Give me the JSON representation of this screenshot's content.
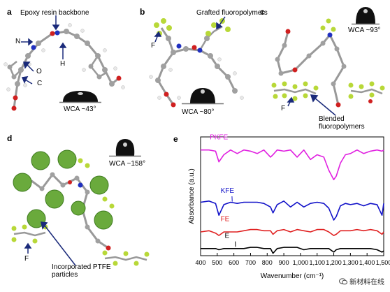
{
  "panels": {
    "a": {
      "label": "a",
      "title": "Epoxy resin backbone",
      "atoms": {
        "n": "N",
        "o": "O",
        "c": "C",
        "h": "H"
      },
      "wca": "WCA ~43°"
    },
    "b": {
      "label": "b",
      "title": "Grafted fluoropolymers",
      "atoms": {
        "f": "F"
      },
      "wca": "WCA ~80°"
    },
    "c": {
      "label": "c",
      "wca": "WCA ~93°",
      "atoms": {
        "f": "F"
      },
      "note_line1": "Blended",
      "note_line2": "fluoropolymers"
    },
    "d": {
      "label": "d",
      "wca": "WCA ~158°",
      "atoms": {
        "f": "F"
      },
      "note_line1": "Incorporated PTFE",
      "note_line2": "particles"
    },
    "e": {
      "label": "e"
    }
  },
  "watermark": "新材料在线",
  "colors": {
    "pkfe": "#e020e0",
    "kfe": "#1010c8",
    "fe": "#e02020",
    "e": "#000000",
    "ptfe": "#6aaa3c",
    "fluorine": "#b8d838",
    "oxygen": "#d02020",
    "nitrogen": "#2030c0",
    "carbon": "#a0a0a0",
    "hydrogen": "#e8e8e8"
  },
  "chart_data": {
    "type": "line",
    "xlabel": "Wavenumber (cm⁻¹)",
    "ylabel": "Absorbance (a.u.)",
    "xlim": [
      400,
      1500
    ],
    "ylim": [
      0,
      10
    ],
    "xticks": [
      "400",
      "500",
      "600",
      "700",
      "800",
      "900",
      "1,000",
      "1,100",
      "1,200",
      "1,300",
      "1,400",
      "1,500"
    ],
    "tick_values": [
      400,
      500,
      600,
      700,
      800,
      900,
      1000,
      1100,
      1200,
      1300,
      1400,
      1500
    ],
    "x": [
      400,
      450,
      490,
      510,
      540,
      580,
      620,
      660,
      700,
      740,
      780,
      820,
      835,
      860,
      900,
      940,
      980,
      1020,
      1060,
      1100,
      1140,
      1170,
      1200,
      1215,
      1240,
      1270,
      1300,
      1340,
      1380,
      1420,
      1460,
      1490,
      1500
    ],
    "series": [
      {
        "name": "PKFE",
        "values": [
          8.9,
          8.9,
          8.8,
          7.9,
          8.5,
          8.9,
          8.6,
          8.9,
          8.8,
          8.6,
          8.9,
          8.3,
          8.5,
          8.9,
          8.8,
          8.9,
          8.3,
          8.9,
          8.1,
          8.5,
          8.3,
          7.2,
          6.4,
          6.7,
          7.8,
          8.5,
          8.6,
          8.9,
          8.6,
          8.8,
          8.9,
          8.8,
          8.9
        ]
      },
      {
        "name": "KFE",
        "values": [
          4.5,
          4.6,
          4.4,
          3.4,
          4.3,
          4.5,
          4.4,
          4.5,
          4.5,
          4.5,
          4.4,
          4.1,
          3.6,
          4.3,
          4.6,
          4.1,
          4.5,
          4.1,
          4.4,
          4.5,
          4.4,
          4.0,
          3.0,
          3.3,
          4.2,
          4.4,
          4.3,
          4.4,
          4.2,
          4.4,
          4.3,
          3.4,
          4.4
        ]
      },
      {
        "name": "FE",
        "values": [
          2.0,
          2.1,
          1.9,
          1.7,
          2.0,
          2.0,
          2.0,
          2.1,
          2.2,
          2.2,
          2.1,
          2.1,
          1.8,
          2.1,
          2.2,
          2.0,
          2.2,
          2.1,
          2.0,
          2.2,
          2.2,
          2.0,
          1.7,
          1.8,
          2.1,
          2.1,
          2.1,
          2.2,
          2.1,
          2.2,
          2.1,
          1.8,
          2.0
        ]
      },
      {
        "name": "E",
        "values": [
          0.6,
          0.6,
          0.6,
          0.5,
          0.6,
          0.6,
          0.6,
          0.6,
          0.7,
          0.7,
          0.6,
          0.6,
          0.2,
          0.6,
          0.7,
          0.7,
          0.7,
          0.5,
          0.6,
          0.6,
          0.6,
          0.6,
          0.3,
          0.5,
          0.6,
          0.6,
          0.6,
          0.6,
          0.6,
          0.6,
          0.5,
          0.3,
          0.4
        ]
      }
    ]
  }
}
